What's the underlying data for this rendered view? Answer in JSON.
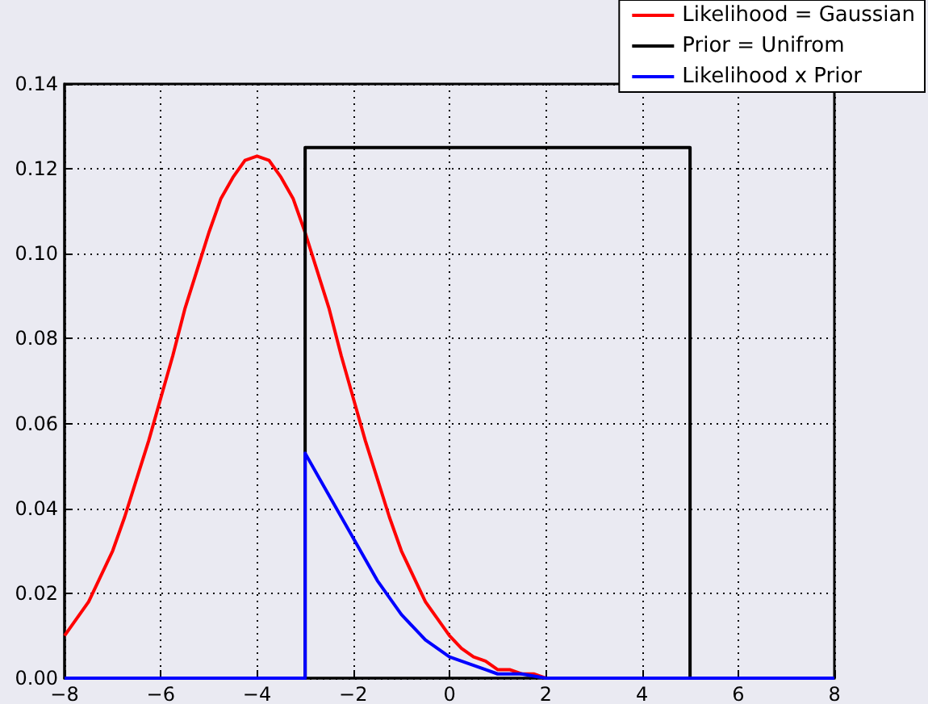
{
  "chart_data": {
    "type": "line",
    "series": [
      {
        "name": "Likelihood = Gaussian",
        "color": "#ff0000",
        "x": [
          -8,
          -7.75,
          -7.5,
          -7.25,
          -7,
          -6.75,
          -6.5,
          -6.25,
          -6,
          -5.75,
          -5.5,
          -5.25,
          -5,
          -4.75,
          -4.5,
          -4.25,
          -4,
          -3.75,
          -3.5,
          -3.25,
          -3,
          -2.75,
          -2.5,
          -2.25,
          -2,
          -1.75,
          -1.5,
          -1.25,
          -1,
          -0.75,
          -0.5,
          -0.25,
          0,
          0.25,
          0.5,
          0.75,
          1,
          1.25,
          1.5,
          1.75,
          2
        ],
        "values": [
          0.01,
          0.014,
          0.018,
          0.024,
          0.03,
          0.038,
          0.047,
          0.056,
          0.066,
          0.076,
          0.087,
          0.096,
          0.105,
          0.113,
          0.118,
          0.122,
          0.123,
          0.122,
          0.118,
          0.113,
          0.105,
          0.096,
          0.087,
          0.076,
          0.066,
          0.056,
          0.047,
          0.038,
          0.03,
          0.024,
          0.018,
          0.014,
          0.01,
          0.007,
          0.005,
          0.004,
          0.002,
          0.002,
          0.001,
          0.001,
          0
        ]
      },
      {
        "name": "Prior = Unifrom",
        "color": "#000000",
        "x": [
          -8,
          -3,
          -3,
          5,
          5,
          8
        ],
        "values": [
          0,
          0,
          0.125,
          0.125,
          0,
          0
        ]
      },
      {
        "name": "Likelihood x Prior",
        "color": "#0000ff",
        "x": [
          -8,
          -3,
          -3,
          -2.75,
          -2.5,
          -2.25,
          -2,
          -1.75,
          -1.5,
          -1.25,
          -1,
          -0.75,
          -0.5,
          -0.25,
          0,
          0.25,
          0.5,
          0.75,
          1,
          1.5,
          2,
          8
        ],
        "values": [
          0,
          0,
          0.053,
          0.048,
          0.043,
          0.038,
          0.033,
          0.028,
          0.023,
          0.019,
          0.015,
          0.012,
          0.009,
          0.007,
          0.005,
          0.004,
          0.003,
          0.002,
          0.001,
          0.001,
          0,
          0
        ]
      }
    ],
    "xlim": [
      -8,
      8
    ],
    "xticks": [
      {
        "value": -8,
        "label": "−8"
      },
      {
        "value": -6,
        "label": "−6"
      },
      {
        "value": -4,
        "label": "−4"
      },
      {
        "value": -2,
        "label": "−2"
      },
      0,
      2,
      4,
      6,
      8
    ],
    "ylim": [
      0,
      0.14
    ],
    "yticks": [
      {
        "value": 0,
        "label": "0.00"
      },
      {
        "value": 0.02,
        "label": "0.02"
      },
      {
        "value": 0.04,
        "label": "0.04"
      },
      {
        "value": 0.06,
        "label": "0.06"
      },
      {
        "value": 0.08,
        "label": "0.08"
      },
      {
        "value": 0.1,
        "label": "0.10"
      },
      {
        "value": 0.12,
        "label": "0.12"
      },
      {
        "value": 0.14,
        "label": "0.14"
      }
    ],
    "grid": true,
    "legend": "top right",
    "marker": "none",
    "line_style": "solid"
  }
}
